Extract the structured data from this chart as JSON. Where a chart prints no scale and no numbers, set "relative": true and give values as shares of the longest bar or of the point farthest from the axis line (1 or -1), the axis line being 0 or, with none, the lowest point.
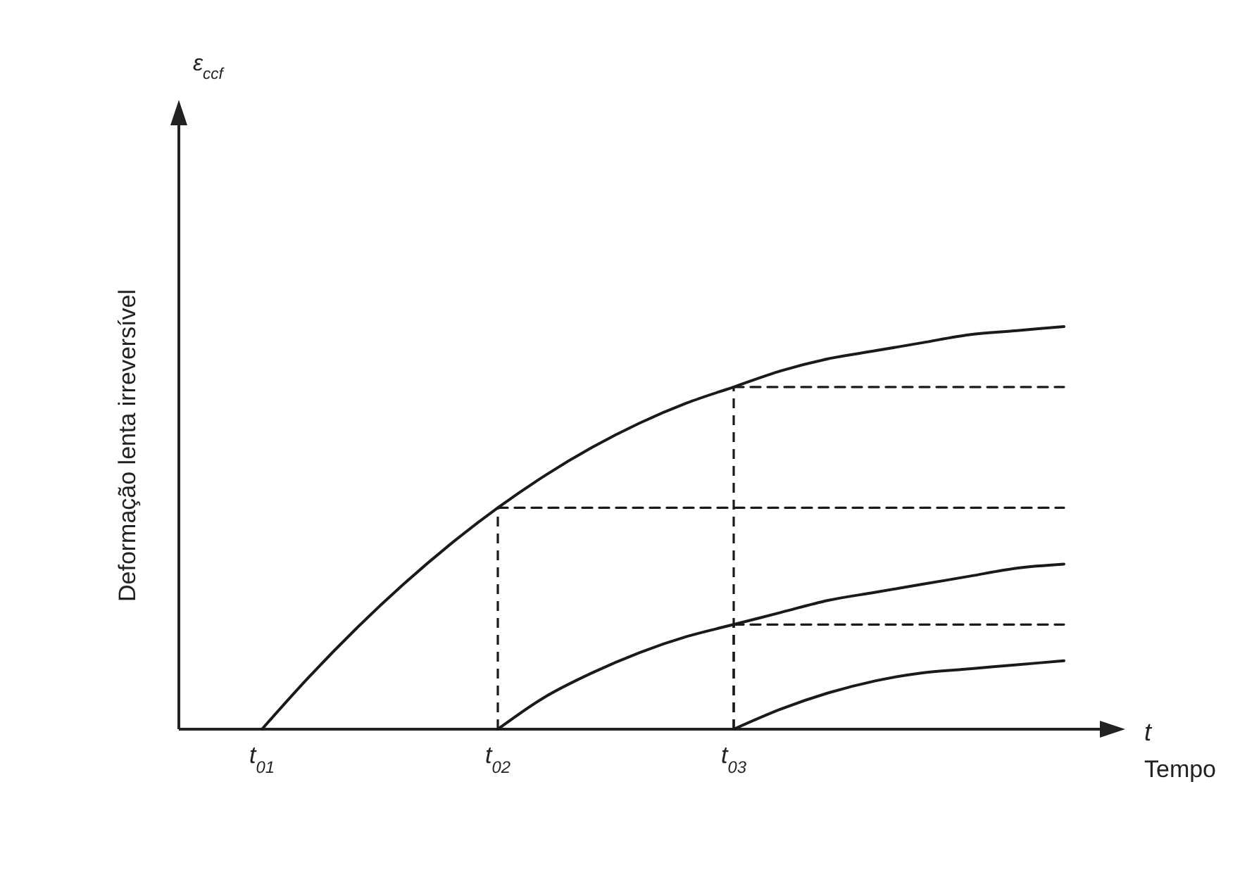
{
  "chart_data": {
    "type": "line",
    "relative": true,
    "xlabel": "Tempo",
    "ylabel": "Deformação lenta irreversível",
    "annotations": [
      "ε$_{ccf}$",
      "t"
    ],
    "categories": [
      "t$_{01}$",
      null,
      null,
      null,
      null,
      "t$_{02}$",
      null,
      null,
      null,
      null,
      "t$_{03}$",
      null,
      null,
      null,
      null,
      null,
      null,
      null
    ],
    "tick_labels": "x",
    "grid": false,
    "marker": "none",
    "series": [
      {
        "color": "#1a1a1a",
        "line_style": "solid",
        "values": [
          0,
          0.13,
          0.25,
          0.36,
          0.46,
          0.55,
          0.63,
          0.7,
          0.76,
          0.81,
          0.85,
          0.89,
          0.92,
          0.94,
          0.96,
          0.98,
          0.99,
          1
        ]
      },
      {
        "color": "#1a1a1a",
        "line_style": "solid",
        "values": [
          null,
          null,
          null,
          null,
          null,
          0,
          0.08,
          0.14,
          0.19,
          0.23,
          0.26,
          0.29,
          0.32,
          0.34,
          0.36,
          0.38,
          0.4,
          0.41
        ]
      },
      {
        "color": "#1a1a1a",
        "line_style": "solid",
        "values": [
          null,
          null,
          null,
          null,
          null,
          null,
          null,
          null,
          null,
          null,
          0,
          0.05,
          0.09,
          0.12,
          0.14,
          0.15,
          0.16,
          0.17
        ]
      },
      {
        "color": "#1a1a1a",
        "line_style": "dashed",
        "values": [
          null,
          null,
          null,
          null,
          null,
          0.55,
          0.55,
          0.55,
          0.55,
          0.55,
          0.55,
          0.55,
          0.55,
          0.55,
          0.55,
          0.55,
          0.55,
          0.55
        ]
      },
      {
        "color": "#1a1a1a",
        "line_style": "dashed",
        "values": [
          null,
          null,
          null,
          null,
          null,
          null,
          null,
          null,
          null,
          null,
          0.85,
          0.85,
          0.85,
          0.85,
          0.85,
          0.85,
          0.85,
          0.85
        ]
      },
      {
        "color": "#1a1a1a",
        "line_style": "dashed",
        "values": [
          null,
          null,
          null,
          null,
          null,
          null,
          null,
          null,
          null,
          null,
          0.26,
          0.26,
          0.26,
          0.26,
          0.26,
          0.26,
          0.26,
          0.26
        ]
      }
    ]
  }
}
